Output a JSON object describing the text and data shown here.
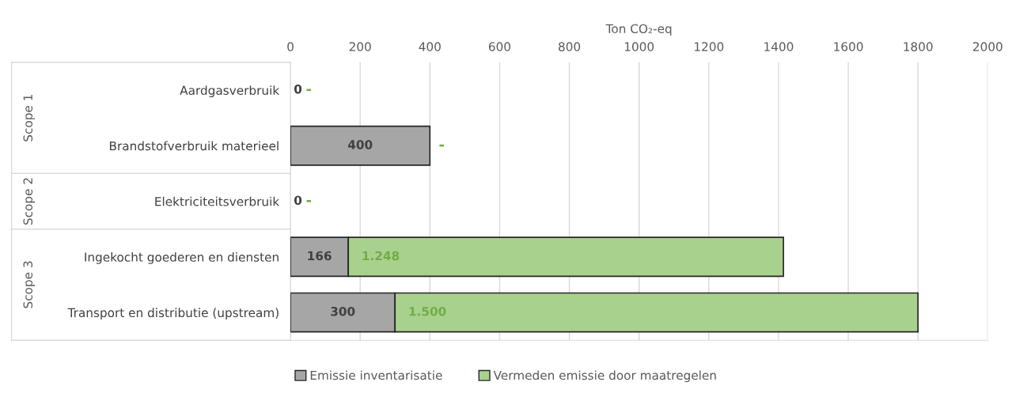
{
  "chart_data": {
    "type": "bar",
    "orientation": "horizontal",
    "stacked": true,
    "xlabel": "Ton CO₂-eq",
    "categories": [
      "Aardgasverbruik",
      "Brandstofverbruik materieel",
      "Elektriciteitsverbruik",
      "Ingekocht goederen en diensten",
      "Transport en distributie (upstream)"
    ],
    "series": [
      {
        "name": "Emissie inventarisatie",
        "color": "#a6a6a6",
        "values": [
          0,
          400,
          0,
          166,
          300
        ],
        "value_labels": [
          "0",
          "400",
          "0",
          "166",
          "300"
        ]
      },
      {
        "name": "Vermeden emissie door maatregelen",
        "color": "#a9d18e",
        "values": [
          0,
          0,
          0,
          1248,
          1500
        ],
        "value_labels": [
          "-",
          "-",
          "-",
          "1.248",
          "1.500"
        ]
      }
    ],
    "xlim": [
      0,
      2000
    ],
    "xticks": [
      0,
      200,
      400,
      600,
      800,
      1000,
      1200,
      1400,
      1600,
      1800,
      2000
    ],
    "grid": "x",
    "legend": "bottom",
    "annotations": [
      "Scope 1",
      "Scope 2",
      "Scope 3"
    ]
  }
}
